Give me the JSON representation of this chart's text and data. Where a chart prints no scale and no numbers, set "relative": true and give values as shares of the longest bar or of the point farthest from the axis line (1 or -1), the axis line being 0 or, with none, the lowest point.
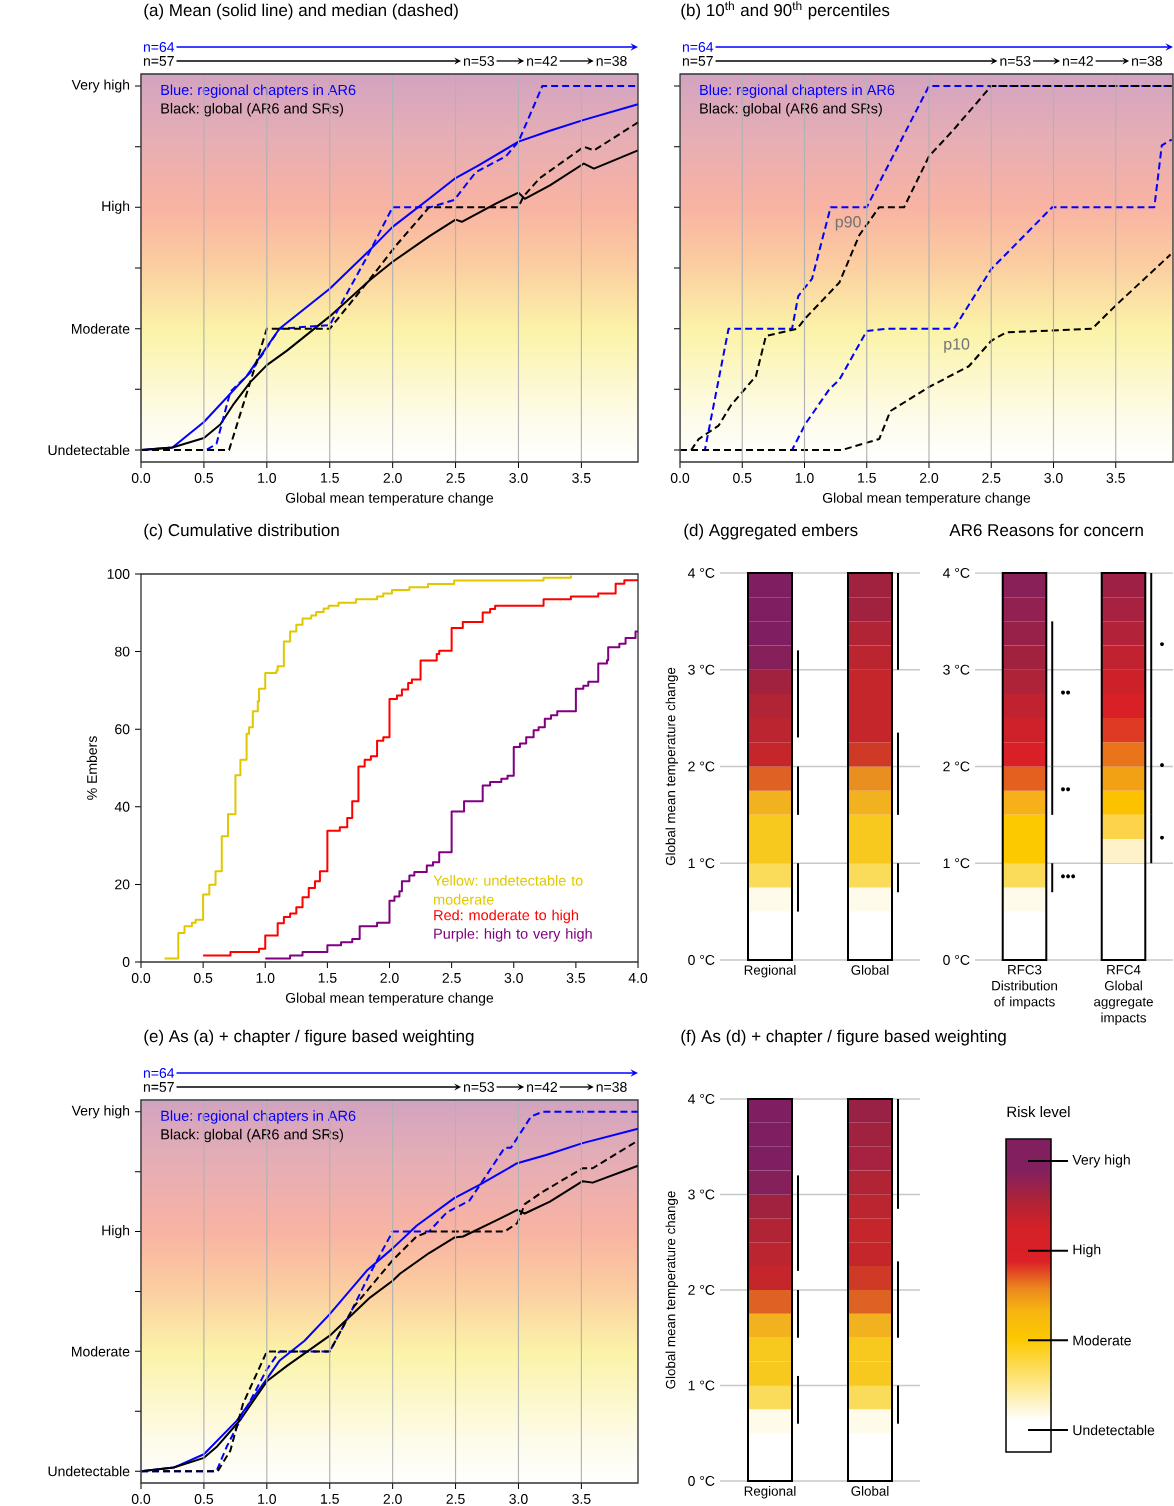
{
  "chart_data": [
    {
      "type": "line",
      "relative": true,
      "title": "(a) Mean (solid line) and median (dashed)",
      "xlabel": "Global mean temperature change",
      "xlim": [
        0,
        3.95
      ],
      "grid": "x",
      "xticks": [
        {
          "value": 0,
          "label": "0.0"
        },
        {
          "value": 0.5,
          "label": "0.5"
        },
        {
          "value": 1,
          "label": "1.0"
        },
        {
          "value": 1.5,
          "label": "1.5"
        },
        {
          "value": 2,
          "label": "2.0"
        },
        {
          "value": 2.5,
          "label": "2.5"
        },
        {
          "value": 3,
          "label": "3.0"
        },
        {
          "value": 3.5,
          "label": "3.5"
        }
      ],
      "y_categories": [
        "Very high",
        null,
        "High",
        null,
        "Moderate",
        null,
        "Undetectable"
      ],
      "series": [
        {
          "color": "#0000ff",
          "line_style": "solid",
          "x": [
            0,
            0.25,
            0.5,
            0.84,
            1.1,
            1.5,
            1.8,
            2.0,
            2.29,
            2.5,
            2.69,
            3.0,
            3.25,
            3.52,
            3.95
          ],
          "values": [
            0,
            0.007,
            0.077,
            0.203,
            0.333,
            0.443,
            0.543,
            0.613,
            0.69,
            0.747,
            0.783,
            0.847,
            0.877,
            0.907,
            0.95
          ]
        },
        {
          "color": "#000000",
          "line_style": "solid",
          "x": [
            0,
            0.25,
            0.5,
            0.63,
            0.73,
            0.87,
            1.0,
            1.16,
            1.5,
            1.82,
            2.0,
            2.29,
            2.5,
            2.55,
            2.82,
            3.0,
            3.05,
            3.25,
            3.52,
            3.6,
            3.95
          ],
          "values": [
            0,
            0.007,
            0.033,
            0.07,
            0.123,
            0.187,
            0.233,
            0.273,
            0.367,
            0.467,
            0.517,
            0.587,
            0.633,
            0.627,
            0.677,
            0.707,
            0.69,
            0.727,
            0.787,
            0.773,
            0.823
          ]
        },
        {
          "color": "#0000ff",
          "line_style": "dashed",
          "x": [
            0,
            0.52,
            0.6,
            0.71,
            0.87,
            1.1,
            1.5,
            1.6,
            1.8,
            2.0,
            2.3,
            2.49,
            2.66,
            2.9,
            3.0,
            3.19,
            3.95
          ],
          "values": [
            0,
            0,
            0.017,
            0.16,
            0.213,
            0.333,
            0.343,
            0.407,
            0.533,
            0.667,
            0.667,
            0.687,
            0.763,
            0.807,
            0.847,
            1,
            1
          ]
        },
        {
          "color": "#000000",
          "line_style": "dashed",
          "x": [
            0,
            0.7,
            1.0,
            1.5,
            1.82,
            2.03,
            2.29,
            3.0,
            3.04,
            3.17,
            3.52,
            3.6,
            3.95
          ],
          "values": [
            0,
            0,
            0.333,
            0.333,
            0.47,
            0.563,
            0.667,
            0.667,
            0.697,
            0.747,
            0.833,
            0.823,
            0.9
          ]
        }
      ],
      "annotations": [
        "Blue: regional chapters in AR6",
        "Black: global (AR6 and SRs)",
        "n=64",
        "n=57",
        "n=53",
        "n=42",
        "n=38"
      ]
    },
    {
      "type": "line",
      "relative": true,
      "title": "(b) 10$^{th}$ and 90$^{th}$ percentiles",
      "xlabel": "Global mean temperature change",
      "xlim": [
        0,
        3.96
      ],
      "grid": "x",
      "xticks": [
        {
          "value": 0,
          "label": "0.0"
        },
        {
          "value": 0.5,
          "label": "0.5"
        },
        {
          "value": 1,
          "label": "1.0"
        },
        {
          "value": 1.5,
          "label": "1.5"
        },
        {
          "value": 2,
          "label": "2.0"
        },
        {
          "value": 2.5,
          "label": "2.5"
        },
        {
          "value": 3,
          "label": "3.0"
        },
        {
          "value": 3.5,
          "label": "3.5"
        }
      ],
      "y_categories": [
        null,
        null,
        null,
        null,
        null,
        null,
        null
      ],
      "series": [
        {
          "color": "#0000ff",
          "line_style": "dashed",
          "x": [
            0,
            0.2,
            0.39,
            0.9,
            0.95,
            1.06,
            1.21,
            1.5,
            2.0,
            3.95
          ],
          "values": [
            0,
            0,
            0.333,
            0.333,
            0.423,
            0.47,
            0.667,
            0.667,
            1,
            1
          ]
        },
        {
          "color": "#000000",
          "line_style": "dashed",
          "x": [
            0,
            0.09,
            0.15,
            0.31,
            0.41,
            0.61,
            0.69,
            0.94,
            1.01,
            1.28,
            1.44,
            1.6,
            1.8,
            2.0,
            2.19,
            2.5,
            3.95
          ],
          "values": [
            0,
            0,
            0.03,
            0.067,
            0.123,
            0.203,
            0.313,
            0.333,
            0.363,
            0.46,
            0.59,
            0.667,
            0.667,
            0.807,
            0.877,
            1,
            1
          ]
        },
        {
          "color": "#0000ff",
          "line_style": "dashed",
          "x": [
            0,
            0.9,
            1.01,
            1.2,
            1.28,
            1.5,
            1.65,
            2.2,
            2.5,
            2.99,
            3.81,
            3.87,
            3.95
          ],
          "values": [
            0,
            0,
            0.073,
            0.167,
            0.193,
            0.327,
            0.333,
            0.333,
            0.497,
            0.667,
            0.667,
            0.837,
            0.853
          ]
        },
        {
          "color": "#000000",
          "line_style": "dashed",
          "x": [
            0,
            1.3,
            1.6,
            1.69,
            2.0,
            2.32,
            2.5,
            2.62,
            3.31,
            3.5,
            3.94
          ],
          "values": [
            0,
            0,
            0.03,
            0.107,
            0.173,
            0.23,
            0.3,
            0.323,
            0.333,
            0.397,
            0.537
          ]
        }
      ],
      "annotations": [
        "Blue: regional chapters in AR6",
        "Black: global (AR6 and SRs)",
        "n=64",
        "n=57",
        "n=53",
        "n=42",
        "n=38",
        "p90",
        "p10"
      ]
    },
    {
      "type": "step",
      "title": "(c) Cumulative distribution",
      "xlabel": "Global mean temperature change",
      "ylabel": "% Embers",
      "xlim": [
        0,
        4
      ],
      "ylim": [
        0,
        100
      ],
      "xticks": [
        {
          "value": 0,
          "label": "0.0"
        },
        {
          "value": 0.5,
          "label": "0.5"
        },
        {
          "value": 1,
          "label": "1.0"
        },
        {
          "value": 1.5,
          "label": "1.5"
        },
        {
          "value": 2,
          "label": "2.0"
        },
        {
          "value": 2.5,
          "label": "2.5"
        },
        {
          "value": 3,
          "label": "3.0"
        },
        {
          "value": 3.5,
          "label": "3.5"
        },
        {
          "value": 4,
          "label": "4.0"
        }
      ],
      "yticks": [
        0,
        20,
        40,
        60,
        80,
        100
      ],
      "series": [
        {
          "color": "#e0c800",
          "x": [
            0.19,
            0.3,
            0.35,
            0.41,
            0.44,
            0.5,
            0.55,
            0.6,
            0.65,
            0.7,
            0.76,
            0.8,
            0.85,
            0.87,
            0.9,
            0.94,
            0.95,
            1.0,
            1.09,
            1.1,
            1.15,
            1.2,
            1.25,
            1.3,
            1.37,
            1.41,
            1.47,
            1.51,
            1.59,
            1.73,
            1.9,
            1.95,
            2.02,
            2.16,
            2.31,
            2.52,
            3.24,
            3.46
          ],
          "values": [
            0.9,
            7.5,
            9.2,
            10.1,
            10.9,
            17.4,
            19.9,
            23.4,
            32.4,
            38.1,
            48.1,
            52.1,
            58.8,
            60.5,
            64.6,
            67.2,
            70.4,
            74.5,
            75.1,
            76.2,
            82.6,
            85.2,
            86.9,
            88.5,
            89.3,
            90.2,
            91.1,
            91.8,
            92.6,
            93.5,
            94.2,
            95.0,
            95.9,
            96.6,
            97.4,
            98.3,
            99.0,
            99.6
          ]
        },
        {
          "color": "#ff0000",
          "x": [
            0.5,
            0.72,
            0.95,
            1.0,
            1.1,
            1.15,
            1.2,
            1.25,
            1.3,
            1.35,
            1.4,
            1.44,
            1.5,
            1.6,
            1.66,
            1.7,
            1.75,
            1.8,
            1.85,
            1.9,
            1.95,
            2.0,
            2.06,
            2.1,
            2.15,
            2.18,
            2.25,
            2.38,
            2.4,
            2.5,
            2.59,
            2.75,
            2.81,
            2.85,
            3.24,
            3.46,
            3.68,
            3.82,
            3.89,
            4.0
          ],
          "values": [
            1.7,
            2.6,
            3.4,
            6.8,
            10.0,
            11.6,
            12.5,
            14.1,
            16.7,
            19.1,
            20.8,
            23.4,
            33.8,
            34.7,
            37.1,
            41.4,
            50.4,
            52.1,
            53.0,
            57.0,
            57.9,
            67.8,
            68.7,
            70.2,
            71.9,
            72.8,
            77.7,
            79.4,
            80.2,
            86.1,
            87.6,
            90.1,
            91.0,
            91.8,
            93.5,
            94.2,
            95.0,
            97.5,
            98.4,
            98.4
          ]
        },
        {
          "color": "#800080",
          "x": [
            1.0,
            1.2,
            1.3,
            1.5,
            1.61,
            1.7,
            1.76,
            1.9,
            2.0,
            2.04,
            2.08,
            2.1,
            2.16,
            2.2,
            2.3,
            2.35,
            2.4,
            2.5,
            2.6,
            2.75,
            2.81,
            2.9,
            2.95,
            3.0,
            3.05,
            3.1,
            3.16,
            3.2,
            3.25,
            3.3,
            3.35,
            3.5,
            3.56,
            3.6,
            3.68,
            3.75,
            3.76,
            3.85,
            3.9,
            3.98,
            4.0
          ],
          "values": [
            0.9,
            1.7,
            2.6,
            4.3,
            5.1,
            5.9,
            9.2,
            10.1,
            15.8,
            16.9,
            18.2,
            20.8,
            22.3,
            23.2,
            24.9,
            25.7,
            28.3,
            38.8,
            41.4,
            45.5,
            46.4,
            47.2,
            48.0,
            55.4,
            56.3,
            57.9,
            59.7,
            60.5,
            62.7,
            63.6,
            64.6,
            70.4,
            71.2,
            72.2,
            76.9,
            77.8,
            81.1,
            82.0,
            83.5,
            85.2,
            85.2
          ]
        }
      ],
      "annotations": [
        "Yellow: undetectable to moderate",
        "Red: moderate to high",
        "Purple: high to very high"
      ]
    },
    {
      "type": "bar",
      "title": "(d) Aggregated embers",
      "ylabel": "Global mean temperature change",
      "categories": [
        "Regional",
        "Global"
      ],
      "ylim": [
        0,
        4
      ],
      "grid": "y",
      "yticks": [
        {
          "value": 0,
          "label": "0 °C"
        },
        {
          "value": 1,
          "label": "1 °C"
        },
        {
          "value": 2,
          "label": "2 °C"
        },
        {
          "value": 3,
          "label": "3 °C"
        },
        {
          "value": 4,
          "label": "4 °C"
        }
      ],
      "series": [
        {
          "values": [
            0.25,
            0.25
          ],
          "base": [
            0.5,
            0.5
          ],
          "colors": [
            "#fffbea",
            "#fffbea"
          ]
        },
        {
          "values": [
            0.25,
            0.25
          ],
          "base": [
            0.75,
            0.75
          ],
          "colors": [
            "#fadb5a",
            "#fadb5a"
          ]
        },
        {
          "values": [
            0.25,
            0.25
          ],
          "base": [
            1.0,
            1.0
          ],
          "colors": [
            "#f7c81e",
            "#f7c81e"
          ]
        },
        {
          "values": [
            0.25,
            0.25
          ],
          "base": [
            1.25,
            1.25
          ],
          "colors": [
            "#f7c81e",
            "#f7c81e"
          ]
        },
        {
          "values": [
            0.25,
            0.25
          ],
          "base": [
            1.5,
            1.5
          ],
          "colors": [
            "#f2b11f",
            "#f2b11f"
          ]
        },
        {
          "values": [
            0.25,
            0.25
          ],
          "base": [
            1.75,
            1.75
          ],
          "colors": [
            "#de6224",
            "#e98f1f"
          ]
        },
        {
          "values": [
            0.25,
            0.25
          ],
          "base": [
            2.0,
            2.0
          ],
          "colors": [
            "#c4262b",
            "#cf3a27"
          ]
        },
        {
          "values": [
            0.25,
            0.25
          ],
          "base": [
            2.25,
            2.25
          ],
          "colors": [
            "#bb252f",
            "#c4262b"
          ]
        },
        {
          "values": [
            0.25,
            0.25
          ],
          "base": [
            2.5,
            2.5
          ],
          "colors": [
            "#b02435",
            "#c4262b"
          ]
        },
        {
          "values": [
            0.25,
            0.25
          ],
          "base": [
            2.75,
            2.75
          ],
          "colors": [
            "#a0223f",
            "#c4262b"
          ]
        },
        {
          "values": [
            0.25,
            0.25
          ],
          "base": [
            3.0,
            3.0
          ],
          "colors": [
            "#86205a",
            "#bb252f"
          ]
        },
        {
          "values": [
            0.25,
            0.25
          ],
          "base": [
            3.25,
            3.25
          ],
          "colors": [
            "#7f1f62",
            "#b02435"
          ]
        },
        {
          "values": [
            0.25,
            0.25
          ],
          "base": [
            3.5,
            3.5
          ],
          "colors": [
            "#7f1f62",
            "#a0223f"
          ]
        },
        {
          "values": [
            0.25,
            0.25
          ],
          "base": [
            3.75,
            3.75
          ],
          "colors": [
            "#7f1f62",
            "#a0223f"
          ]
        },
        {
          "color": "#000000",
          "base": [
            0.5,
            0.7
          ],
          "values": [
            0.5,
            0.3
          ]
        },
        {
          "color": "#000000",
          "base": [
            1.5,
            1.5
          ],
          "values": [
            0.5,
            0.85
          ]
        },
        {
          "color": "#000000",
          "base": [
            2.3,
            3.0
          ],
          "values": [
            0.9,
            1.0
          ]
        }
      ]
    },
    {
      "type": "bar",
      "title": "AR6 Reasons for concern",
      "categories": [
        "RFC3 Distribution of impacts",
        "RFC4 Global aggregate impacts"
      ],
      "ylim": [
        0,
        4
      ],
      "grid": "y",
      "yticks": [
        {
          "value": 0,
          "label": "0 °C"
        },
        {
          "value": 1,
          "label": "1 °C"
        },
        {
          "value": 2,
          "label": "2 °C"
        },
        {
          "value": 3,
          "label": "3 °C"
        },
        {
          "value": 4,
          "label": "4 °C"
        }
      ],
      "series": [
        {
          "values": [
            0.25,
            null
          ],
          "base": [
            0.5,
            null
          ],
          "colors": [
            "#fffbea",
            null
          ]
        },
        {
          "values": [
            0.25,
            null
          ],
          "base": [
            0.75,
            null
          ],
          "colors": [
            "#fadb5a",
            null
          ]
        },
        {
          "values": [
            0.25,
            0.25
          ],
          "base": [
            1.0,
            1.0
          ],
          "colors": [
            "#fcc900",
            "#fef3c8"
          ]
        },
        {
          "values": [
            0.25,
            0.25
          ],
          "base": [
            1.25,
            1.25
          ],
          "colors": [
            "#fcc900",
            "#fcd34a"
          ]
        },
        {
          "values": [
            0.25,
            0.25
          ],
          "base": [
            1.5,
            1.5
          ],
          "colors": [
            "#f5b01a",
            "#fcc200"
          ]
        },
        {
          "values": [
            0.25,
            0.25
          ],
          "base": [
            1.75,
            1.75
          ],
          "colors": [
            "#e3601f",
            "#f3a114"
          ]
        },
        {
          "values": [
            0.25,
            0.25
          ],
          "base": [
            2.0,
            2.0
          ],
          "colors": [
            "#d92027",
            "#e9741c"
          ]
        },
        {
          "values": [
            0.25,
            0.25
          ],
          "base": [
            2.25,
            2.25
          ],
          "colors": [
            "#cf2129",
            "#de3a24"
          ]
        },
        {
          "values": [
            0.25,
            0.25
          ],
          "base": [
            2.5,
            2.5
          ],
          "colors": [
            "#c0232f",
            "#d92027"
          ]
        },
        {
          "values": [
            0.25,
            0.25
          ],
          "base": [
            2.75,
            2.75
          ],
          "colors": [
            "#ad2338",
            "#cc2129"
          ]
        },
        {
          "values": [
            0.25,
            0.25
          ],
          "base": [
            3.0,
            3.0
          ],
          "colors": [
            "#a0223f",
            "#c0232f"
          ]
        },
        {
          "values": [
            0.25,
            0.25
          ],
          "base": [
            3.25,
            3.25
          ],
          "colors": [
            "#98214a",
            "#b2233a"
          ]
        },
        {
          "values": [
            0.25,
            0.25
          ],
          "base": [
            3.5,
            3.5
          ],
          "colors": [
            "#922152",
            "#a62240"
          ]
        },
        {
          "values": [
            0.25,
            0.25
          ],
          "base": [
            3.75,
            3.75
          ],
          "colors": [
            "#8a2058",
            "#9e2145"
          ]
        },
        {
          "color": "#000000",
          "base": [
            0.7,
            1.0
          ],
          "values": [
            0.3,
            0.5
          ]
        },
        {
          "color": "#000000",
          "base": [
            1.5,
            1.5
          ],
          "values": [
            0.5,
            1.0
          ]
        },
        {
          "color": "#000000",
          "base": [
            2.0,
            2.5
          ],
          "values": [
            1.5,
            1.5
          ]
        }
      ],
      "annotations": [
        "••",
        "••",
        "•••",
        "•",
        "•",
        "•"
      ]
    },
    {
      "type": "line",
      "relative": true,
      "title": "(e) As (a) + chapter / figure based weighting",
      "xlim": [
        0,
        3.95
      ],
      "grid": "x",
      "xticks": [
        {
          "value": 0,
          "label": "0.0"
        },
        {
          "value": 0.5,
          "label": "0.5"
        },
        {
          "value": 1,
          "label": "1.0"
        },
        {
          "value": 1.5,
          "label": "1.5"
        },
        {
          "value": 2,
          "label": "2.0"
        },
        {
          "value": 2.5,
          "label": "2.5"
        },
        {
          "value": 3,
          "label": "3.0"
        },
        {
          "value": 3.5,
          "label": "3.5"
        }
      ],
      "y_categories": [
        "Very high",
        null,
        "High",
        null,
        "Moderate",
        null,
        "Undetectable"
      ],
      "series": [
        {
          "color": "#0000ff",
          "line_style": "solid",
          "x": [
            0,
            0.26,
            0.5,
            0.76,
            1.0,
            1.1,
            1.3,
            1.5,
            1.8,
            2.0,
            2.19,
            2.49,
            2.69,
            2.99,
            3.22,
            3.51,
            3.95
          ],
          "values": [
            0,
            0.01,
            0.047,
            0.14,
            0.257,
            0.307,
            0.363,
            0.437,
            0.56,
            0.62,
            0.683,
            0.76,
            0.797,
            0.857,
            0.88,
            0.913,
            0.953
          ]
        },
        {
          "color": "#000000",
          "line_style": "solid",
          "x": [
            0,
            0.26,
            0.5,
            0.6,
            0.79,
            1.0,
            1.16,
            1.5,
            1.82,
            2.0,
            2.06,
            2.29,
            2.49,
            2.56,
            2.82,
            2.99,
            3.05,
            3.25,
            3.51,
            3.59,
            3.95
          ],
          "values": [
            0,
            0.01,
            0.037,
            0.067,
            0.143,
            0.25,
            0.293,
            0.377,
            0.483,
            0.53,
            0.55,
            0.607,
            0.65,
            0.653,
            0.697,
            0.727,
            0.717,
            0.75,
            0.807,
            0.803,
            0.85
          ]
        },
        {
          "color": "#0000ff",
          "line_style": "dashed",
          "x": [
            0,
            0.6,
            0.68,
            0.81,
            1.0,
            1.1,
            1.5,
            1.66,
            1.82,
            2.0,
            2.29,
            2.43,
            2.61,
            2.72,
            2.89,
            2.94,
            3.1,
            3.19,
            3.95
          ],
          "values": [
            0,
            0,
            0.067,
            0.157,
            0.283,
            0.333,
            0.333,
            0.437,
            0.55,
            0.667,
            0.667,
            0.72,
            0.753,
            0.81,
            0.9,
            0.9,
            0.987,
            1,
            1
          ]
        },
        {
          "color": "#000000",
          "line_style": "dashed",
          "x": [
            0,
            0.61,
            0.71,
            0.81,
            1.0,
            1.5,
            1.69,
            2.0,
            2.19,
            2.29,
            2.89,
            2.99,
            3.05,
            3.19,
            3.51,
            3.59,
            3.95
          ],
          "values": [
            0,
            0,
            0.057,
            0.187,
            0.333,
            0.333,
            0.457,
            0.587,
            0.653,
            0.667,
            0.667,
            0.69,
            0.743,
            0.777,
            0.843,
            0.843,
            0.92
          ]
        }
      ],
      "annotations": [
        "Blue: regional chapters in AR6",
        "Black: global (AR6 and SRs)",
        "n=64",
        "n=57",
        "n=53",
        "n=42",
        "n=38"
      ]
    },
    {
      "type": "bar",
      "title": "(f) As (d) + chapter / figure based weighting",
      "ylabel": "Global mean temperature change",
      "categories": [
        "Regional",
        "Global"
      ],
      "ylim": [
        0,
        4
      ],
      "grid": "y",
      "yticks": [
        {
          "value": 0,
          "label": "0 °C"
        },
        {
          "value": 1,
          "label": "1 °C"
        },
        {
          "value": 2,
          "label": "2 °C"
        },
        {
          "value": 3,
          "label": "3 °C"
        },
        {
          "value": 4,
          "label": "4 °C"
        }
      ],
      "series": [
        {
          "values": [
            0.25,
            0.25
          ],
          "base": [
            0.5,
            0.5
          ],
          "colors": [
            "#fffbea",
            "#fffbea"
          ]
        },
        {
          "values": [
            0.25,
            0.25
          ],
          "base": [
            0.75,
            0.75
          ],
          "colors": [
            "#fadb5a",
            "#fadb5a"
          ]
        },
        {
          "values": [
            0.25,
            0.25
          ],
          "base": [
            1.0,
            1.0
          ],
          "colors": [
            "#f7c81e",
            "#f7c81e"
          ]
        },
        {
          "values": [
            0.25,
            0.25
          ],
          "base": [
            1.25,
            1.25
          ],
          "colors": [
            "#f7c81e",
            "#f7c81e"
          ]
        },
        {
          "values": [
            0.25,
            0.25
          ],
          "base": [
            1.5,
            1.5
          ],
          "colors": [
            "#f2b11f",
            "#f2b11f"
          ]
        },
        {
          "values": [
            0.25,
            0.25
          ],
          "base": [
            1.75,
            1.75
          ],
          "colors": [
            "#de6224",
            "#de6224"
          ]
        },
        {
          "values": [
            0.25,
            0.25
          ],
          "base": [
            2.0,
            2.0
          ],
          "colors": [
            "#c4262b",
            "#cf3a27"
          ]
        },
        {
          "values": [
            0.25,
            0.25
          ],
          "base": [
            2.25,
            2.25
          ],
          "colors": [
            "#bb252f",
            "#c4262b"
          ]
        },
        {
          "values": [
            0.25,
            0.25
          ],
          "base": [
            2.5,
            2.5
          ],
          "colors": [
            "#b02435",
            "#c4262b"
          ]
        },
        {
          "values": [
            0.25,
            0.25
          ],
          "base": [
            2.75,
            2.75
          ],
          "colors": [
            "#a0223f",
            "#bb252f"
          ]
        },
        {
          "values": [
            0.25,
            0.25
          ],
          "base": [
            3.0,
            3.0
          ],
          "colors": [
            "#86205a",
            "#b02435"
          ]
        },
        {
          "values": [
            0.25,
            0.25
          ],
          "base": [
            3.25,
            3.25
          ],
          "colors": [
            "#7f1f62",
            "#a62240"
          ]
        },
        {
          "values": [
            0.25,
            0.25
          ],
          "base": [
            3.5,
            3.5
          ],
          "colors": [
            "#7f1f62",
            "#a0223f"
          ]
        },
        {
          "values": [
            0.25,
            0.25
          ],
          "base": [
            3.75,
            3.75
          ],
          "colors": [
            "#7f1f62",
            "#9a2146"
          ]
        },
        {
          "color": "#000000",
          "base": [
            0.6,
            0.6
          ],
          "values": [
            0.5,
            0.4
          ]
        },
        {
          "color": "#000000",
          "base": [
            1.5,
            1.5
          ],
          "values": [
            0.5,
            0.8
          ]
        },
        {
          "color": "#000000",
          "base": [
            2.2,
            2.85
          ],
          "values": [
            1.0,
            1.15
          ]
        }
      ]
    },
    {
      "type": "other",
      "title": "Risk level",
      "annotations": [
        "Very high",
        "High",
        "Moderate",
        "Undetectable"
      ]
    }
  ]
}
